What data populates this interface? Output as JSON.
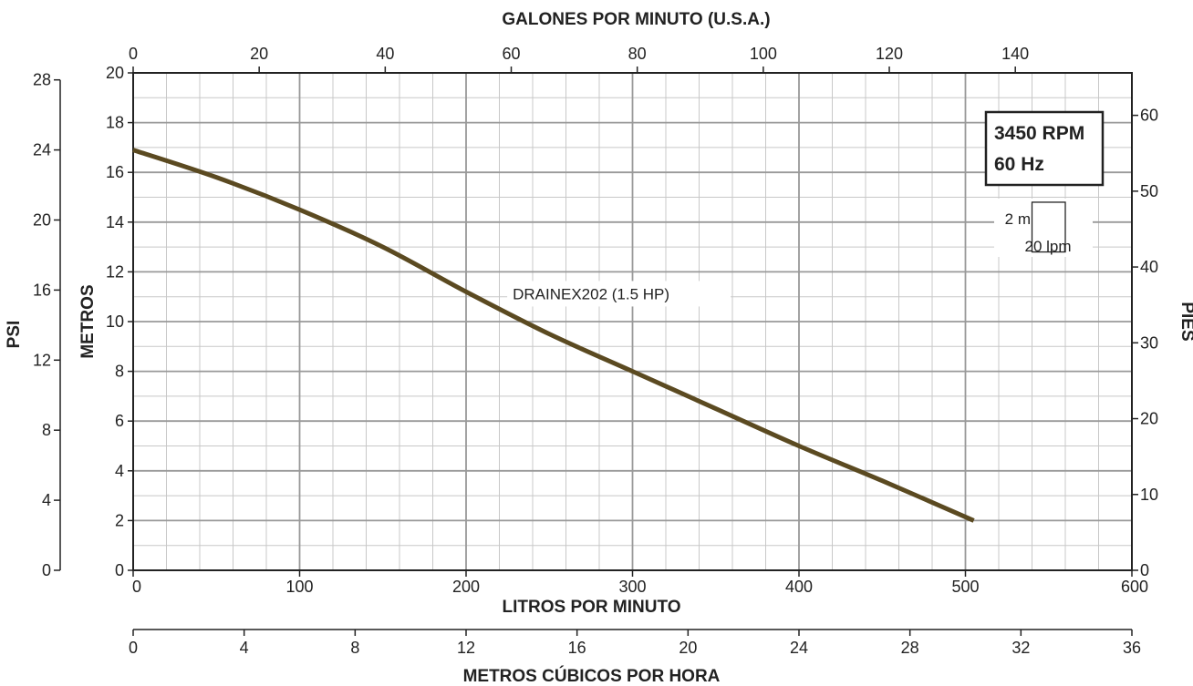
{
  "chart_data": {
    "type": "line",
    "top_axis": {
      "title": "GALONES POR MINUTO (U.S.A.)",
      "range": [
        0,
        158.5
      ],
      "ticks": [
        0,
        20,
        40,
        60,
        80,
        100,
        120,
        140
      ]
    },
    "bottom_axis": {
      "title": "LITROS POR MINUTO",
      "range": [
        0,
        600
      ],
      "ticks": [
        0,
        100,
        200,
        300,
        400,
        500,
        600
      ]
    },
    "second_bottom_axis": {
      "title": "METROS CÚBICOS POR HORA",
      "range": [
        0,
        36
      ],
      "ticks": [
        0,
        4,
        8,
        12,
        16,
        20,
        24,
        28,
        32,
        36
      ]
    },
    "left_axis": {
      "title": "METROS",
      "range": [
        0,
        20
      ],
      "ticks": [
        0,
        2,
        4,
        6,
        8,
        10,
        12,
        14,
        16,
        18,
        20
      ]
    },
    "far_left_axis": {
      "title": "PSI",
      "range": [
        0,
        28.4
      ],
      "ticks": [
        0,
        4,
        8,
        12,
        16,
        20,
        24,
        28
      ]
    },
    "right_axis": {
      "title": "PIES",
      "range": [
        0,
        65.6
      ],
      "ticks": [
        0,
        10,
        20,
        30,
        40,
        50,
        60
      ]
    },
    "grid": true,
    "speed_box": {
      "line1": "3450 RPM",
      "line2": "60 Hz"
    },
    "scale_box": {
      "vertical": "2 m",
      "horizontal": "20 lpm"
    },
    "series": [
      {
        "name": "DRAINEX202 (1.5 HP)",
        "color": "#5b4a21",
        "x": [
          0,
          50,
          100,
          150,
          200,
          250,
          300,
          350,
          400,
          450,
          505
        ],
        "y": [
          16.9,
          15.8,
          14.5,
          13.0,
          11.2,
          9.5,
          8.0,
          6.5,
          5.0,
          3.6,
          2.0
        ]
      }
    ]
  }
}
